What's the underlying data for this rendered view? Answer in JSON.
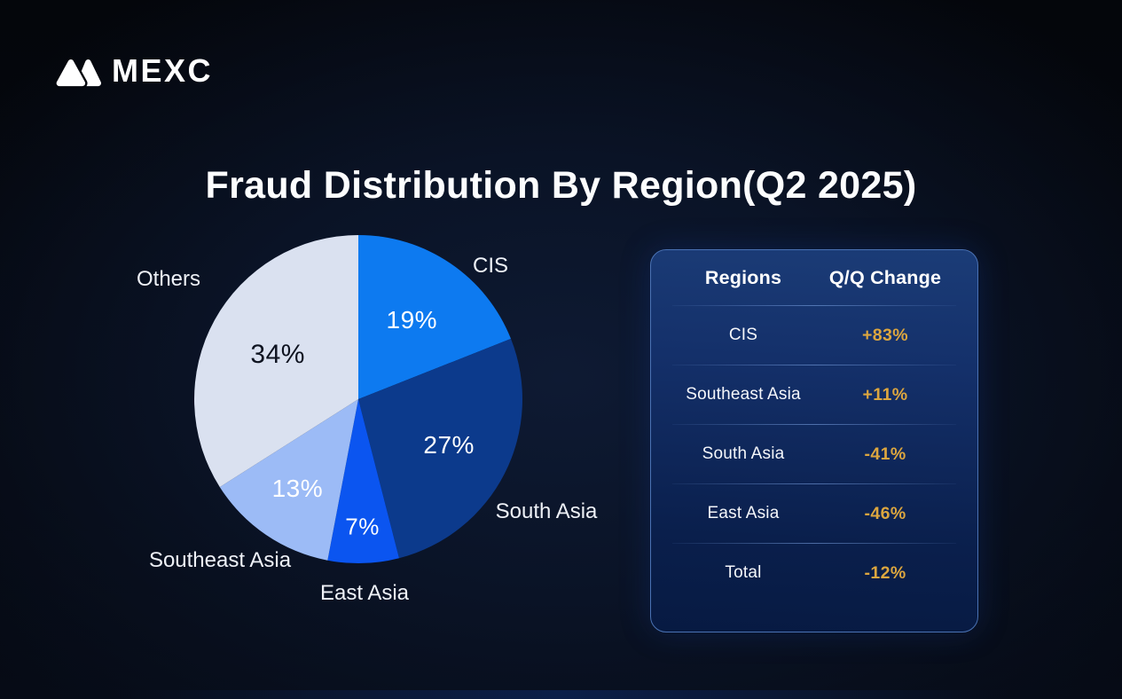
{
  "header": {
    "brand": "MEXC",
    "title": "Fraud Distribution By Region(Q2 2025)"
  },
  "chart_data": {
    "type": "pie",
    "title": "Fraud Distribution By Region(Q2 2025)",
    "categories": [
      "CIS",
      "South Asia",
      "East Asia",
      "Southeast Asia",
      "Others"
    ],
    "values": [
      19,
      27,
      7,
      13,
      34
    ],
    "value_labels": [
      "19%",
      "27%",
      "7%",
      "13%",
      "34%"
    ],
    "unit": "%",
    "start_angle_deg": 0,
    "direction": "clockwise",
    "colors": [
      "#0d7af0",
      "#0c3a8c",
      "#0b55f0",
      "#9cbbf6",
      "#dae1f0"
    ],
    "value_label_colors": [
      "#ffffff",
      "#ffffff",
      "#ffffff",
      "#ffffff",
      "#0e1320"
    ],
    "legend_position": "labels-outside"
  },
  "table": {
    "columns": [
      "Regions",
      "Q/Q Change"
    ],
    "rows": [
      {
        "region": "CIS",
        "change": "+83%"
      },
      {
        "region": "Southeast Asia",
        "change": "+11%"
      },
      {
        "region": "South Asia",
        "change": "-41%"
      },
      {
        "region": "East Asia",
        "change": "-46%"
      },
      {
        "region": "Total",
        "change": "-12%"
      }
    ],
    "accent_color": "#dca63f"
  },
  "colors": {
    "background": "#05080f",
    "card_border": "#4a72b4",
    "text_primary": "#ffffff"
  }
}
